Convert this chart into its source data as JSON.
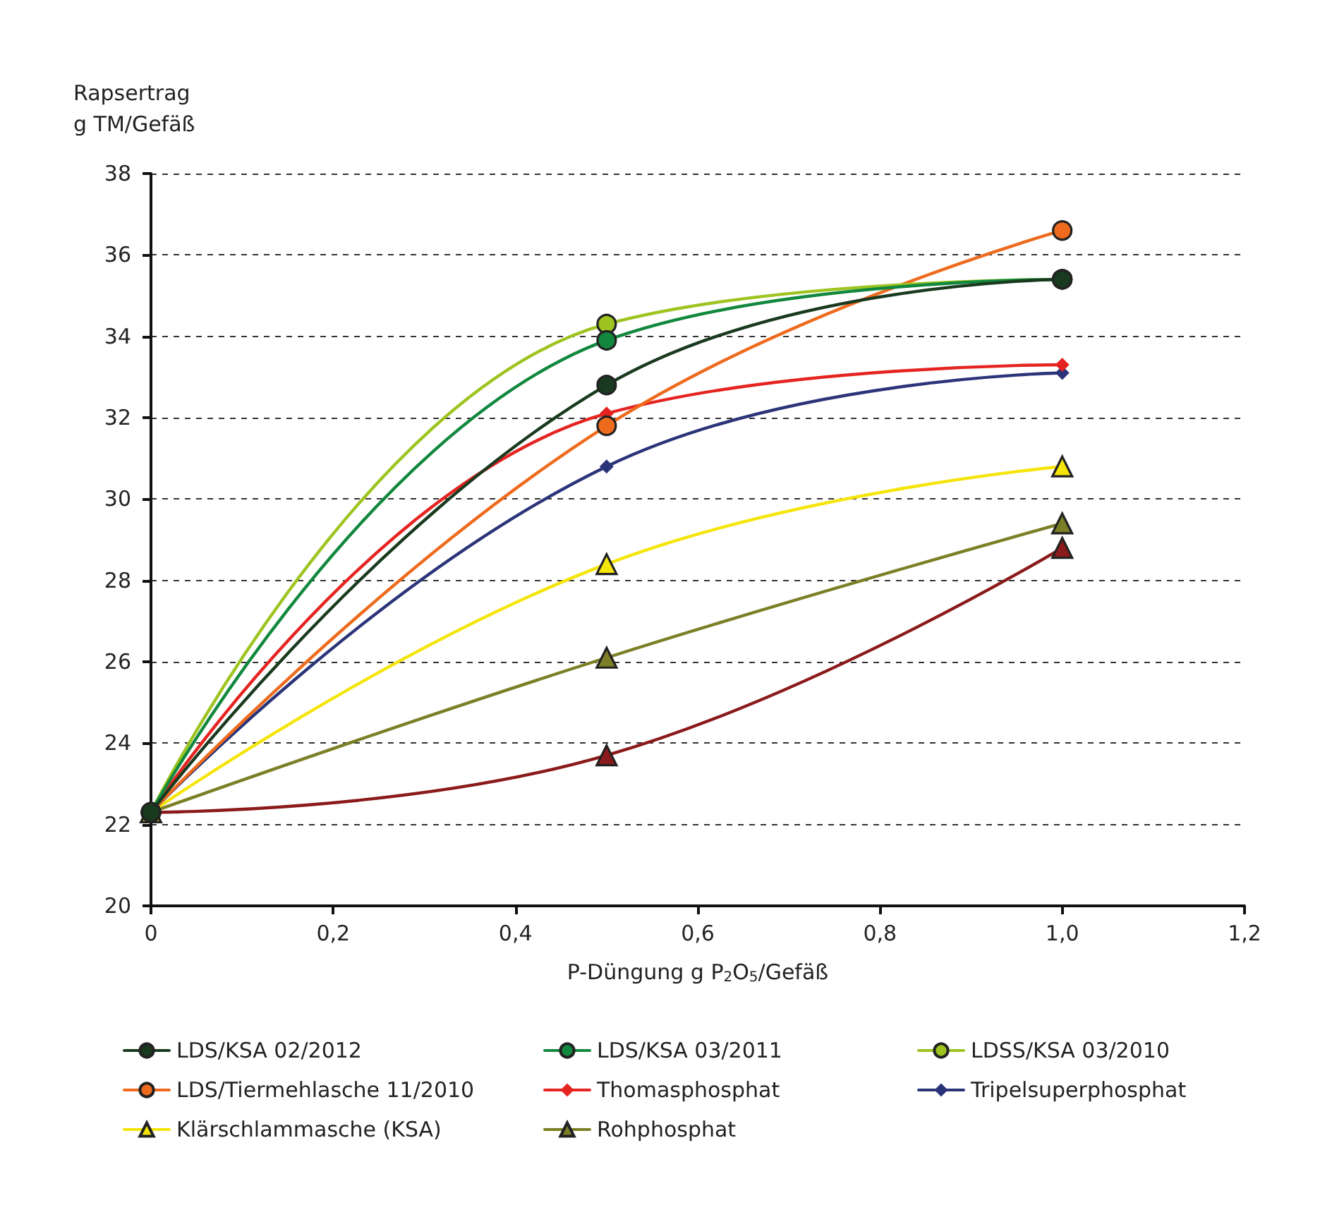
{
  "chart_data": {
    "type": "line",
    "xlabel": "P-Düngung g P$_{2}$O$_{5}$/Gefäß",
    "ylabel": "Rapsertrag\ng TM/Gefäß",
    "x": [
      0,
      0.5,
      1.0
    ],
    "series": [
      {
        "name": "LDS/KSA 02/2012",
        "color": "#1a3a1f",
        "marker": "circle",
        "values": [
          22.3,
          32.8,
          35.4
        ]
      },
      {
        "name": "LDS/KSA 03/2011",
        "color": "#12883e",
        "marker": "circle",
        "values": [
          22.3,
          33.9,
          35.4
        ]
      },
      {
        "name": "LDSS/KSA 03/2010",
        "color": "#9dc41f",
        "marker": "circle",
        "values": [
          22.3,
          34.3,
          35.4
        ]
      },
      {
        "name": "LDS/Tiermehlasche 11/2010",
        "color": "#ee6b1e",
        "marker": "circle",
        "values": [
          22.3,
          31.8,
          36.6
        ]
      },
      {
        "name": "Thomasphosphat",
        "color": "#e52421",
        "marker": "diamond",
        "values": [
          22.3,
          32.1,
          33.3
        ]
      },
      {
        "name": "Tripelsuperphosphat",
        "color": "#2b3479",
        "marker": "diamond",
        "values": [
          22.3,
          30.8,
          33.1
        ]
      },
      {
        "name": "Klärschlammasche (KSA)",
        "color": "#f5e50a",
        "marker": "triangle",
        "values": [
          22.3,
          28.4,
          30.8
        ]
      },
      {
        "name": "Rohphosphat",
        "color": "#7c7f26",
        "marker": "triangle",
        "values": [
          22.3,
          26.1,
          29.4
        ]
      },
      {
        "color": "#8b1a1a",
        "marker": "triangle",
        "values": [
          22.3,
          23.7,
          28.8
        ]
      }
    ],
    "xlim": [
      0,
      1.2
    ],
    "xticks": [
      0,
      {
        "value": 0.2,
        "label": "0,2"
      },
      {
        "value": 0.4,
        "label": "0,4"
      },
      {
        "value": 0.6,
        "label": "0,6"
      },
      {
        "value": 0.8,
        "label": "0,8"
      },
      {
        "value": 1.0,
        "label": "1,0"
      },
      {
        "value": 1.2,
        "label": "1,2"
      }
    ],
    "ylim": [
      20,
      38
    ],
    "yticks": [
      20,
      22,
      24,
      26,
      28,
      30,
      32,
      34,
      36,
      38
    ],
    "grid": "y",
    "legend": "bottom"
  }
}
